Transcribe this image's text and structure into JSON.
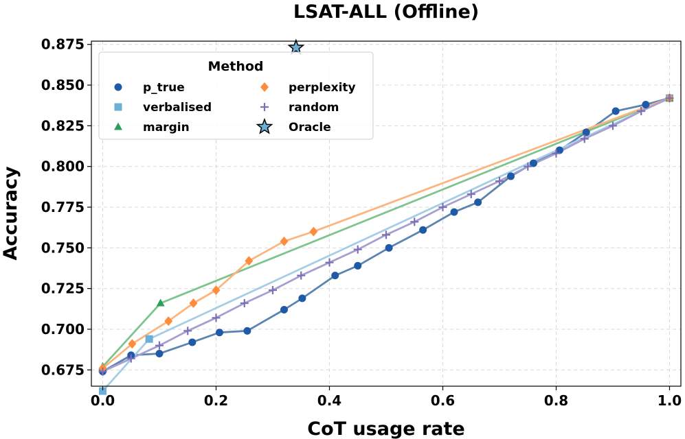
{
  "chart_data": {
    "type": "line",
    "title": "LSAT-ALL (Offline)",
    "xlabel": "CoT usage rate",
    "ylabel": "Accuracy",
    "xlim": [
      -0.02,
      1.02
    ],
    "ylim": [
      0.665,
      0.877
    ],
    "xticks": [
      0.0,
      0.2,
      0.4,
      0.6,
      0.8,
      1.0
    ],
    "xtick_labels": [
      "0.0",
      "0.2",
      "0.4",
      "0.6",
      "0.8",
      "1.0"
    ],
    "yticks": [
      0.675,
      0.7,
      0.725,
      0.75,
      0.775,
      0.8,
      0.825,
      0.85,
      0.875
    ],
    "ytick_labels": [
      "0.675",
      "0.700",
      "0.725",
      "0.750",
      "0.775",
      "0.800",
      "0.825",
      "0.850",
      "0.875"
    ],
    "grid": true,
    "legend": {
      "title": "Method",
      "placement": "top-left",
      "entries": [
        "p_true",
        "verbalised",
        "margin",
        "perplexity",
        "random",
        "Oracle"
      ]
    },
    "series": [
      {
        "name": "p_true",
        "marker": "circle",
        "line_color": "#5b84b1",
        "marker_color": "#1f5aa6",
        "points": [
          [
            0.0,
            0.674
          ],
          [
            0.05,
            0.684
          ],
          [
            0.1,
            0.685
          ],
          [
            0.158,
            0.692
          ],
          [
            0.206,
            0.698
          ],
          [
            0.255,
            0.699
          ],
          [
            0.32,
            0.712
          ],
          [
            0.352,
            0.719
          ],
          [
            0.41,
            0.733
          ],
          [
            0.45,
            0.739
          ],
          [
            0.505,
            0.75
          ],
          [
            0.565,
            0.761
          ],
          [
            0.62,
            0.772
          ],
          [
            0.662,
            0.778
          ],
          [
            0.72,
            0.794
          ],
          [
            0.76,
            0.802
          ],
          [
            0.806,
            0.81
          ],
          [
            0.853,
            0.821
          ],
          [
            0.905,
            0.834
          ],
          [
            0.958,
            0.838
          ],
          [
            1.0,
            0.842
          ]
        ]
      },
      {
        "name": "verbalised",
        "marker": "square",
        "line_color": "#a6cde6",
        "marker_color": "#6baed6",
        "points": [
          [
            0.0,
            0.662
          ],
          [
            0.082,
            0.694
          ],
          [
            1.0,
            0.842
          ]
        ]
      },
      {
        "name": "margin",
        "marker": "triangle",
        "line_color": "#7dc490",
        "marker_color": "#2ca05a",
        "points": [
          [
            0.0,
            0.677
          ],
          [
            0.102,
            0.716
          ],
          [
            1.0,
            0.842
          ]
        ]
      },
      {
        "name": "perplexity",
        "marker": "diamond",
        "line_color": "#fbb57e",
        "marker_color": "#fd8d3c",
        "points": [
          [
            0.0,
            0.676
          ],
          [
            0.052,
            0.691
          ],
          [
            0.116,
            0.705
          ],
          [
            0.16,
            0.716
          ],
          [
            0.2,
            0.724
          ],
          [
            0.258,
            0.742
          ],
          [
            0.32,
            0.754
          ],
          [
            0.372,
            0.76
          ],
          [
            1.0,
            0.842
          ]
        ]
      },
      {
        "name": "random",
        "marker": "plus",
        "line_color": "#a79fcf",
        "marker_color": "#7b6fb5",
        "points": [
          [
            0.0,
            0.674
          ],
          [
            0.05,
            0.682
          ],
          [
            0.1,
            0.69
          ],
          [
            0.15,
            0.699
          ],
          [
            0.2,
            0.707
          ],
          [
            0.25,
            0.716
          ],
          [
            0.3,
            0.724
          ],
          [
            0.35,
            0.733
          ],
          [
            0.4,
            0.741
          ],
          [
            0.45,
            0.749
          ],
          [
            0.5,
            0.758
          ],
          [
            0.55,
            0.766
          ],
          [
            0.6,
            0.775
          ],
          [
            0.65,
            0.783
          ],
          [
            0.7,
            0.791
          ],
          [
            0.75,
            0.8
          ],
          [
            0.8,
            0.808
          ],
          [
            0.85,
            0.817
          ],
          [
            0.9,
            0.825
          ],
          [
            0.95,
            0.834
          ],
          [
            1.0,
            0.842
          ]
        ]
      },
      {
        "name": "Oracle",
        "marker": "star",
        "line_color": "none",
        "marker_color": "#6baed6",
        "points": [
          [
            0.341,
            0.873
          ]
        ]
      }
    ]
  }
}
